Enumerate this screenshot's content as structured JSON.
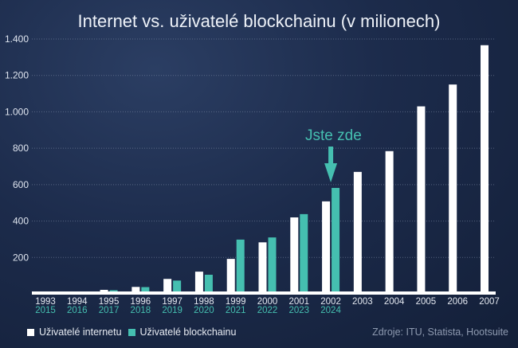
{
  "chart_data": {
    "type": "bar",
    "title": "Internet vs. uživatelé blockchainu (v milionech)",
    "categories": [
      "1993",
      "1994",
      "1995",
      "1996",
      "1997",
      "1998",
      "1999",
      "2000",
      "2001",
      "2002",
      "2003",
      "2004",
      "2005",
      "2006",
      "2007"
    ],
    "secondary_categories": [
      "2015",
      "2016",
      "2017",
      "2018",
      "2019",
      "2020",
      "2021",
      "2022",
      "2023",
      "2024"
    ],
    "series": [
      {
        "name": "Uživatelé internetu",
        "color": "#ffffff",
        "values": [
          2,
          8,
          22,
          38,
          82,
          122,
          192,
          283,
          420,
          508,
          670,
          784,
          1030,
          1150,
          1366
        ]
      },
      {
        "name": "Uživatelé blockchainu",
        "color": "#45bfb0",
        "values": [
          null,
          4,
          20,
          37,
          73,
          105,
          298,
          310,
          438,
          582,
          null,
          null,
          null,
          null,
          null
        ]
      }
    ],
    "yticks": [
      "200",
      "400",
      "600",
      "800",
      "1.000",
      "1.200",
      "1.400"
    ],
    "ytick_values": [
      200,
      400,
      600,
      800,
      1000,
      1200,
      1400
    ],
    "ylim": [
      0,
      1400
    ],
    "grid": true,
    "legend": "bottom-left",
    "annotation": {
      "text": "Jste zde",
      "category": "2002"
    }
  },
  "source": "Zdroje: ITU, Statista, Hootsuite"
}
